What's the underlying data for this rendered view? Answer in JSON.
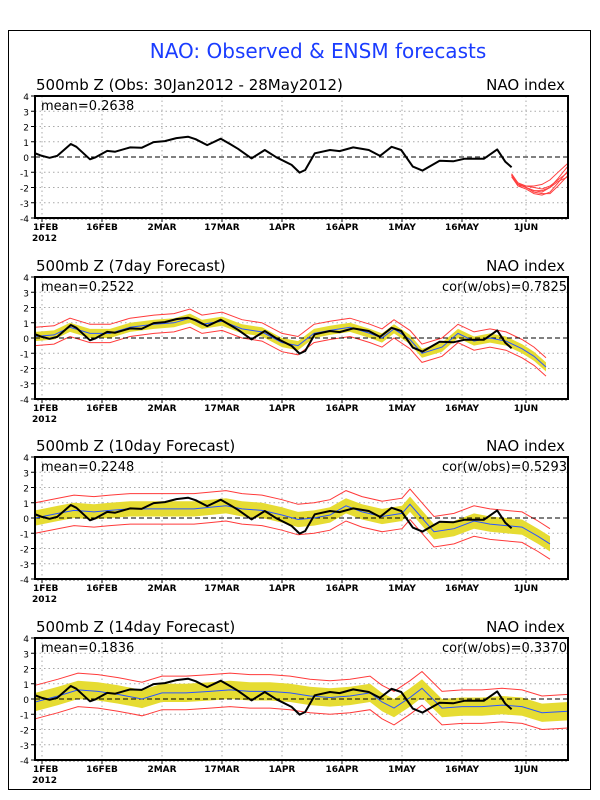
{
  "title": "NAO: Observed & ENSM forecasts",
  "colors": {
    "title": "#1a3cff",
    "obs": "#000000",
    "ens_mean": "#2b55ff",
    "spread": "#e6dc32",
    "range": "#ff3a3a",
    "ensemble": "#ff4040"
  },
  "chart_data": [
    {
      "type": "line",
      "title": "500mb Z (Obs: 30Jan2012 - 28May2012)",
      "right_label": "NAO index",
      "mean_label": "mean=0.2638",
      "ylim": [
        -4,
        4
      ],
      "yticks": [
        4,
        3,
        2,
        1,
        0,
        -1,
        -2,
        -3,
        -4
      ],
      "x_unit": "days since 1 Feb 2012",
      "xlim": [
        -1.75,
        131.5
      ],
      "xticks": [
        {
          "day": 0,
          "label": "1FEB"
        },
        {
          "day": 15,
          "label": "16FEB"
        },
        {
          "day": 30,
          "label": "2MAR"
        },
        {
          "day": 45,
          "label": "17MAR"
        },
        {
          "day": 60,
          "label": "1APR"
        },
        {
          "day": 75,
          "label": "16APR"
        },
        {
          "day": 90,
          "label": "1MAY"
        },
        {
          "day": 105,
          "label": "16MAY"
        },
        {
          "day": 121,
          "label": "1JUN"
        }
      ],
      "year_label": "2012",
      "ensemble_members": [
        {
          "x": [
            117.4,
            119,
            121,
            123,
            125,
            127,
            129,
            131.5
          ],
          "y": [
            -1.1,
            -1.7,
            -1.9,
            -1.9,
            -1.8,
            -1.5,
            -1.0,
            -0.4
          ]
        },
        {
          "x": [
            117.4,
            119,
            121,
            123,
            125,
            127,
            129,
            131.5
          ],
          "y": [
            -1.2,
            -1.8,
            -2.0,
            -2.2,
            -2.3,
            -2.0,
            -1.4,
            -0.6
          ]
        },
        {
          "x": [
            117.4,
            119,
            121,
            123,
            125,
            127,
            129,
            131.5
          ],
          "y": [
            -1.3,
            -1.9,
            -2.1,
            -2.4,
            -2.5,
            -2.3,
            -1.7,
            -0.9
          ]
        },
        {
          "x": [
            117.4,
            119,
            121,
            123,
            125,
            127,
            129,
            131.5
          ],
          "y": [
            -1.1,
            -1.8,
            -2.0,
            -2.3,
            -2.4,
            -2.4,
            -1.9,
            -1.2
          ]
        },
        {
          "x": [
            117.4,
            119,
            121,
            123,
            125,
            127,
            129,
            131.5
          ],
          "y": [
            -1.2,
            -1.9,
            -1.9,
            -2.0,
            -2.1,
            -1.9,
            -1.5,
            -1.0
          ]
        },
        {
          "x": [
            117.4,
            119,
            121,
            123,
            125,
            127,
            129,
            131.5
          ],
          "y": [
            -1.2,
            -1.7,
            -2.0,
            -2.2,
            -2.2,
            -2.0,
            -1.6,
            -1.3
          ]
        }
      ]
    },
    {
      "type": "line",
      "title": "500mb Z (7day Forecast)",
      "right_label": "NAO index",
      "mean_label": "mean=0.2522",
      "cor_label": "cor(w/obs)=0.7825",
      "ylim": [
        -4,
        4
      ],
      "ens_mean": {
        "x": [
          -1.7,
          3,
          7,
          12,
          17,
          22,
          28,
          33,
          37,
          40,
          45,
          50,
          55,
          60,
          64,
          68,
          72,
          77,
          82,
          85,
          88,
          92,
          95,
          100,
          104,
          108,
          112,
          116,
          120,
          123,
          126
        ],
        "y": [
          0.1,
          0.2,
          0.7,
          0.3,
          0.3,
          0.7,
          0.9,
          1.0,
          1.3,
          0.9,
          1.1,
          0.6,
          0.4,
          -0.3,
          -0.5,
          0.3,
          0.5,
          0.7,
          0.3,
          0.0,
          0.6,
          -0.1,
          -1.0,
          -0.6,
          0.3,
          -0.2,
          0.0,
          -0.2,
          -0.7,
          -1.2,
          -1.9
        ]
      },
      "spread_halfwidth": 0.3,
      "range_halfwidth": 0.6
    },
    {
      "type": "line",
      "title": "500mb Z (10day Forecast)",
      "right_label": "NAO index",
      "mean_label": "mean=0.2248",
      "cor_label": "cor(w/obs)=0.5293",
      "ylim": [
        -4,
        4
      ],
      "ens_mean": {
        "x": [
          -1.7,
          4,
          8,
          13,
          17,
          22,
          28,
          34,
          38,
          42,
          46,
          50,
          55,
          60,
          64,
          68,
          72,
          76,
          80,
          85,
          90,
          92,
          95,
          98,
          103,
          108,
          112,
          116,
          120,
          124,
          127
        ],
        "y": [
          0.0,
          0.3,
          0.5,
          0.4,
          0.5,
          0.6,
          0.6,
          0.6,
          0.6,
          0.7,
          0.8,
          0.6,
          0.5,
          0.2,
          -0.1,
          0.0,
          0.2,
          0.8,
          0.4,
          0.1,
          0.3,
          0.9,
          0.0,
          -0.9,
          -0.7,
          -0.2,
          -0.4,
          -0.5,
          -0.6,
          -1.2,
          -1.7
        ]
      },
      "spread_halfwidth": 0.5,
      "range_halfwidth": 1.0
    },
    {
      "type": "line",
      "title": "500mb Z (14day Forecast)",
      "right_label": "NAO index",
      "mean_label": "mean=0.1836",
      "cor_label": "cor(w/obs)=0.3370",
      "ylim": [
        -4,
        4
      ],
      "ens_mean": {
        "x": [
          -1.7,
          4,
          9,
          14,
          19,
          25,
          30,
          36,
          42,
          47,
          52,
          57,
          62,
          67,
          72,
          77,
          82,
          85,
          88,
          92,
          95,
          100,
          105,
          110,
          115,
          120,
          125,
          131.5
        ],
        "y": [
          -0.2,
          0.2,
          0.6,
          0.5,
          0.3,
          0.0,
          0.4,
          0.4,
          0.5,
          0.6,
          0.5,
          0.5,
          0.4,
          0.2,
          0.1,
          0.2,
          0.4,
          -0.2,
          -0.6,
          0.1,
          0.7,
          -0.6,
          -0.5,
          -0.5,
          -0.4,
          -0.5,
          -0.9,
          -0.8
        ]
      },
      "spread_halfwidth": 0.6,
      "range_halfwidth": 1.1
    }
  ],
  "observed": {
    "x": [
      -1.7,
      0,
      1.9,
      3.8,
      7.2,
      8.6,
      12,
      13.4,
      16.3,
      18.3,
      22,
      24.9,
      27.9,
      30.7,
      33.6,
      36.5,
      38.4,
      41.3,
      44.7,
      47,
      49,
      52.4,
      55.7,
      58.6,
      62.4,
      64.4,
      65.8,
      68.2,
      72,
      74.4,
      77.8,
      81.7,
      84.5,
      87.4,
      89.8,
      92.7,
      95.1,
      99.4,
      102.8,
      105.7,
      110.5,
      113.8,
      115.8,
      117.4
    ],
    "y": [
      0.24,
      0.07,
      -0.05,
      0.07,
      0.85,
      0.67,
      -0.15,
      -0.02,
      0.4,
      0.35,
      0.63,
      0.6,
      0.98,
      1.04,
      1.24,
      1.33,
      1.17,
      0.78,
      1.2,
      0.85,
      0.54,
      -0.09,
      0.46,
      -0.02,
      -0.52,
      -1.02,
      -0.85,
      0.24,
      0.46,
      0.39,
      0.63,
      0.46,
      0.07,
      0.67,
      0.46,
      -0.63,
      -0.89,
      -0.24,
      -0.28,
      -0.11,
      -0.11,
      0.5,
      -0.3,
      -0.67
    ]
  }
}
